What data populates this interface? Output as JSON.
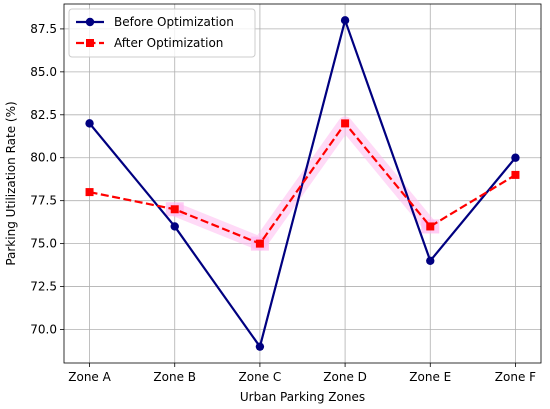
{
  "chart_data": {
    "type": "line",
    "title": "",
    "xlabel": "Urban Parking Zones",
    "ylabel": "Parking Utilization Rate (%)",
    "categories": [
      "Zone A",
      "Zone B",
      "Zone C",
      "Zone D",
      "Zone E",
      "Zone F"
    ],
    "ylim": [
      68.05,
      88.95
    ],
    "yticks": [
      70.0,
      72.5,
      75.0,
      77.5,
      80.0,
      82.5,
      85.0,
      87.5
    ],
    "ytick_labels": [
      "70.0",
      "72.5",
      "75.0",
      "77.5",
      "80.0",
      "82.5",
      "85.0",
      "87.5"
    ],
    "grid": true,
    "legend_position": "top-left",
    "series": [
      {
        "name": "Before Optimization",
        "values": [
          82,
          76,
          69,
          88,
          74,
          80
        ],
        "color": "#000080",
        "marker": "circle",
        "line_style": "solid"
      },
      {
        "name": "After Optimization",
        "values": [
          78,
          77,
          75,
          82,
          76,
          79
        ],
        "color": "#ff0000",
        "marker": "square",
        "line_style": "dashed"
      }
    ],
    "highlight_color": "#ffb6f0"
  }
}
